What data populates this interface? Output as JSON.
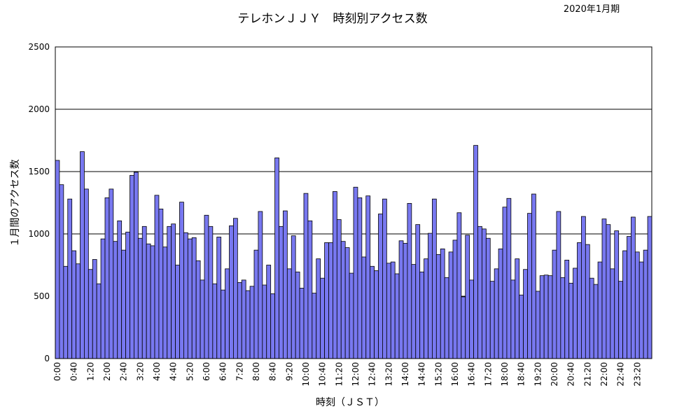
{
  "period_label": "2020年1月期",
  "chart_data": {
    "type": "bar",
    "title": "テレホンＪＪＹ　時刻別アクセス数",
    "xlabel": "時刻（ＪＳＴ）",
    "ylabel": "１月間のアクセス数",
    "ylim": [
      0,
      2500
    ],
    "yticks": [
      0,
      500,
      1000,
      1500,
      2000,
      2500
    ],
    "grid": true,
    "bar_color": "#7878f0",
    "categories": [
      "0:00",
      "0:10",
      "0:20",
      "0:30",
      "0:40",
      "0:50",
      "1:00",
      "1:10",
      "1:20",
      "1:30",
      "1:40",
      "1:50",
      "2:00",
      "2:10",
      "2:20",
      "2:30",
      "2:40",
      "2:50",
      "3:00",
      "3:10",
      "3:20",
      "3:30",
      "3:40",
      "3:50",
      "4:00",
      "4:10",
      "4:20",
      "4:30",
      "4:40",
      "4:50",
      "5:00",
      "5:10",
      "5:20",
      "5:30",
      "5:40",
      "5:50",
      "6:00",
      "6:10",
      "6:20",
      "6:30",
      "6:40",
      "6:50",
      "7:00",
      "7:10",
      "7:20",
      "7:30",
      "7:40",
      "7:50",
      "8:00",
      "8:10",
      "8:20",
      "8:30",
      "8:40",
      "8:50",
      "9:00",
      "9:10",
      "9:20",
      "9:30",
      "9:40",
      "9:50",
      "10:00",
      "10:10",
      "10:20",
      "10:30",
      "10:40",
      "10:50",
      "11:00",
      "11:10",
      "11:20",
      "11:30",
      "11:40",
      "11:50",
      "12:00",
      "12:10",
      "12:20",
      "12:30",
      "12:40",
      "12:50",
      "13:00",
      "13:10",
      "13:20",
      "13:30",
      "13:40",
      "13:50",
      "14:00",
      "14:10",
      "14:20",
      "14:30",
      "14:40",
      "14:50",
      "15:00",
      "15:10",
      "15:20",
      "15:30",
      "15:40",
      "15:50",
      "16:00",
      "16:10",
      "16:20",
      "16:30",
      "16:40",
      "16:50",
      "17:00",
      "17:10",
      "17:20",
      "17:30",
      "17:40",
      "17:50",
      "18:00",
      "18:10",
      "18:20",
      "18:30",
      "18:40",
      "18:50",
      "19:00",
      "19:10",
      "19:20",
      "19:30",
      "19:40",
      "19:50",
      "20:00",
      "20:10",
      "20:20",
      "20:30",
      "20:40",
      "20:50",
      "21:00",
      "21:10",
      "21:20",
      "21:30",
      "21:40",
      "21:50",
      "22:00",
      "22:10",
      "22:20",
      "22:30",
      "22:40",
      "22:50",
      "23:00",
      "23:10",
      "23:20",
      "23:30",
      "23:40",
      "23:50"
    ],
    "tick_labels": [
      "0:00",
      "0:40",
      "1:20",
      "2:00",
      "2:40",
      "3:20",
      "4:00",
      "4:40",
      "5:20",
      "6:00",
      "6:40",
      "7:20",
      "8:00",
      "8:40",
      "9:20",
      "10:00",
      "10:40",
      "11:20",
      "12:00",
      "12:40",
      "13:20",
      "14:00",
      "14:40",
      "15:20",
      "16:00",
      "16:40",
      "17:20",
      "18:00",
      "18:40",
      "19:20",
      "20:00",
      "20:40",
      "21:20",
      "22:00",
      "22:40",
      "23:20"
    ],
    "values": [
      1590,
      1395,
      740,
      1280,
      865,
      760,
      1660,
      1360,
      715,
      795,
      600,
      960,
      1290,
      1360,
      940,
      1105,
      870,
      1015,
      1470,
      1495,
      965,
      1060,
      920,
      905,
      1310,
      1200,
      895,
      1060,
      1080,
      750,
      1255,
      1010,
      960,
      970,
      785,
      630,
      1150,
      1060,
      600,
      975,
      550,
      720,
      1065,
      1125,
      610,
      630,
      545,
      580,
      870,
      1180,
      590,
      750,
      520,
      1610,
      1060,
      1185,
      720,
      985,
      695,
      565,
      1325,
      1105,
      525,
      800,
      645,
      930,
      930,
      1340,
      1115,
      940,
      890,
      685,
      1375,
      1290,
      815,
      1305,
      740,
      705,
      1160,
      1280,
      765,
      775,
      680,
      945,
      925,
      1245,
      755,
      1075,
      695,
      800,
      1005,
      1280,
      835,
      880,
      650,
      855,
      950,
      1170,
      495,
      990,
      630,
      1710,
      1060,
      1040,
      965,
      620,
      720,
      880,
      1215,
      1285,
      630,
      800,
      510,
      715,
      1165,
      1320,
      540,
      665,
      670,
      665,
      870,
      1180,
      650,
      790,
      605,
      725,
      930,
      1140,
      915,
      645,
      595,
      775,
      1120,
      1075,
      720,
      1025,
      620,
      865,
      980,
      1135,
      855,
      775,
      870,
      1140
    ]
  }
}
